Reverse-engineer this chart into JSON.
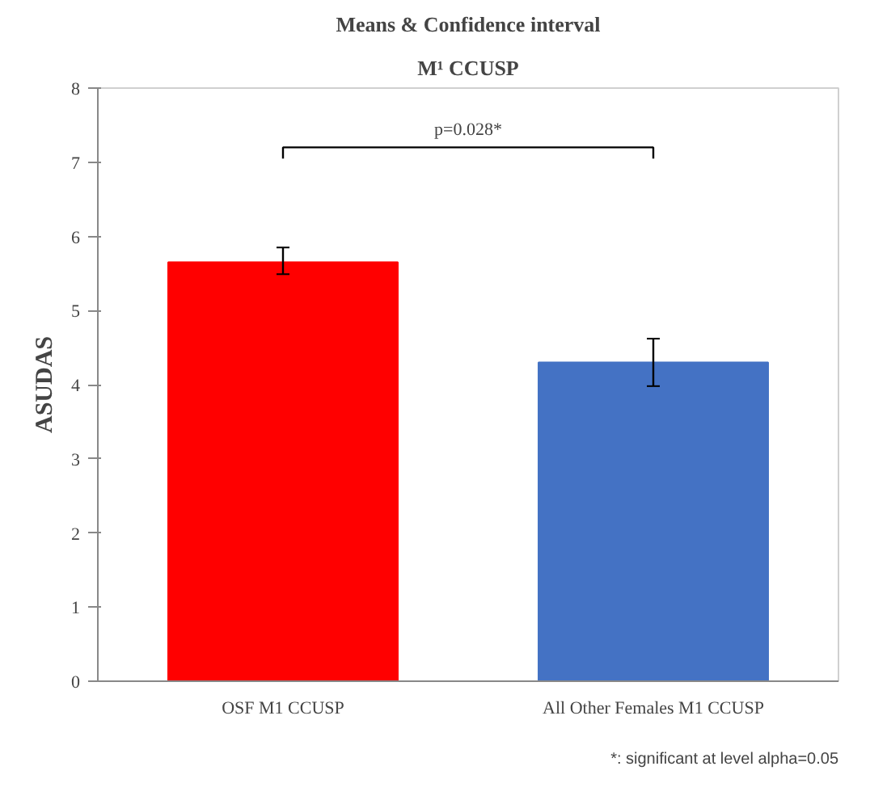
{
  "chart_data": {
    "type": "bar",
    "title": "Means & Confidence interval",
    "subtitle": "M¹ CCUSP",
    "ylabel": "ASUDAS",
    "categories": [
      "OSF M1 CCUSP",
      "All Other Females M1 CCUSP"
    ],
    "values": [
      5.65,
      4.3
    ],
    "colors": [
      "#ff0000",
      "#4472c4"
    ],
    "errors": [
      [
        5.49,
        5.85
      ],
      [
        3.98,
        4.62
      ]
    ],
    "ylim": [
      0,
      8
    ],
    "yticks": [
      0,
      1,
      2,
      3,
      4,
      5,
      6,
      7,
      8
    ],
    "grid": false,
    "annotations": [
      "p=0.028*",
      "*: significant at level alpha=0.05"
    ]
  }
}
